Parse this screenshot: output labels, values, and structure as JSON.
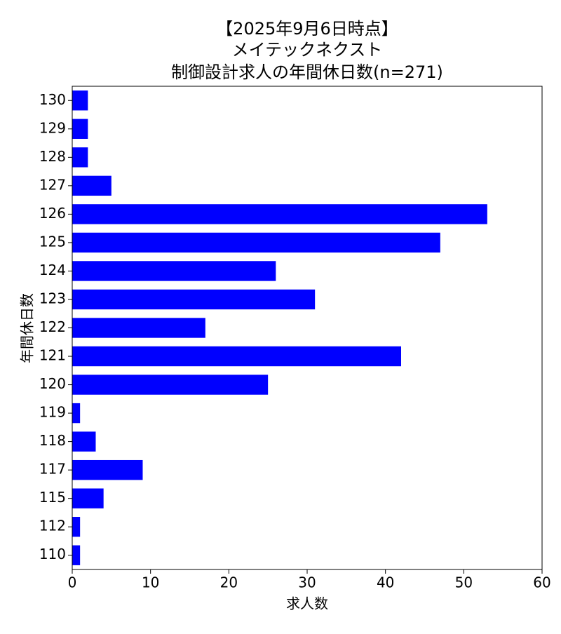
{
  "chart_data": {
    "type": "barh",
    "title": [
      "【2025年9月6日時点】",
      "メイテックネクスト",
      "制御設計求人の年間休日数(n=271)"
    ],
    "xlabel": "求人数",
    "ylabel": "年間休日数",
    "categories": [
      "110",
      "112",
      "115",
      "117",
      "118",
      "119",
      "120",
      "121",
      "122",
      "123",
      "124",
      "125",
      "126",
      "127",
      "128",
      "129",
      "130"
    ],
    "values": [
      1,
      1,
      4,
      9,
      3,
      1,
      25,
      42,
      17,
      31,
      26,
      47,
      53,
      5,
      2,
      2,
      2
    ],
    "color": "#0000ff",
    "xlim": [
      0,
      60
    ],
    "xticks": [
      0,
      10,
      20,
      30,
      40,
      50,
      60
    ],
    "grid": false
  }
}
